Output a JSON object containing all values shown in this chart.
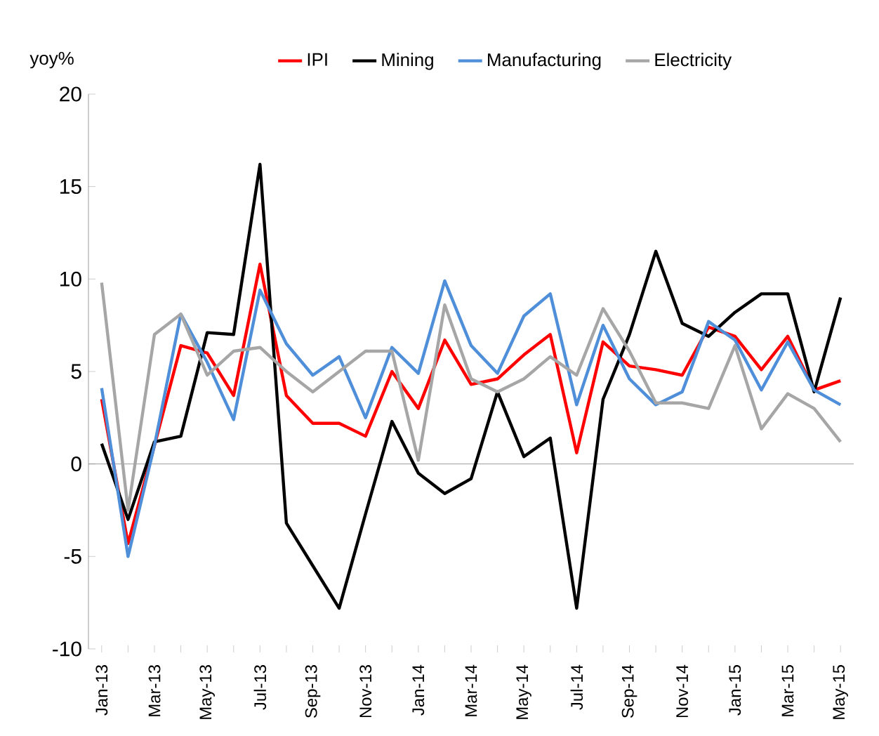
{
  "chart_data": {
    "type": "line",
    "ylabel": "yoy%",
    "categories": [
      "Jan-13",
      null,
      "Mar-13",
      null,
      "May-13",
      null,
      "Jul-13",
      null,
      "Sep-13",
      null,
      "Nov-13",
      null,
      "Jan-14",
      null,
      "Mar-14",
      null,
      "May-14",
      null,
      "Jul-14",
      null,
      "Sep-14",
      null,
      "Nov-14",
      null,
      "Jan-15",
      null,
      "Mar-15",
      null,
      "May-15"
    ],
    "series": [
      {
        "name": "IPI",
        "color": "#ff0000",
        "values": [
          3.5,
          -4.3,
          1.0,
          6.4,
          6.0,
          3.7,
          10.8,
          3.7,
          2.2,
          2.2,
          1.5,
          5.0,
          3.0,
          6.7,
          4.3,
          4.6,
          5.9,
          7.0,
          0.6,
          6.6,
          5.3,
          5.1,
          4.8,
          7.4,
          6.9,
          5.1,
          6.9,
          4.0,
          4.5
        ]
      },
      {
        "name": "Mining",
        "color": "#000000",
        "values": [
          1.1,
          -3.0,
          1.2,
          1.5,
          7.1,
          7.0,
          16.2,
          -3.2,
          -5.5,
          -7.8,
          -2.7,
          2.3,
          -0.5,
          -1.6,
          -0.8,
          3.9,
          0.4,
          1.4,
          -7.8,
          3.5,
          7.0,
          11.5,
          7.6,
          6.9,
          8.2,
          9.2,
          9.2,
          3.9,
          9.0
        ]
      },
      {
        "name": "Manufacturing",
        "color": "#4f8fd9",
        "values": [
          4.1,
          -5.0,
          1.0,
          8.1,
          5.5,
          2.4,
          9.4,
          6.5,
          4.8,
          5.8,
          2.5,
          6.3,
          4.9,
          9.9,
          6.4,
          4.9,
          8.0,
          9.2,
          3.2,
          7.5,
          4.6,
          3.2,
          3.9,
          7.7,
          6.7,
          4.0,
          6.6,
          4.0,
          3.2
        ]
      },
      {
        "name": "Electricity",
        "color": "#a6a6a6",
        "values": [
          9.8,
          -2.5,
          7.0,
          8.1,
          4.8,
          6.1,
          6.3,
          5.0,
          3.9,
          5.0,
          6.1,
          6.1,
          0.2,
          8.6,
          4.6,
          3.9,
          4.6,
          5.8,
          4.8,
          8.4,
          6.1,
          3.3,
          3.3,
          3.0,
          6.4,
          1.9,
          3.8,
          3.0,
          1.2
        ]
      }
    ],
    "ylim": [
      -10,
      20
    ],
    "yticks": [
      -10,
      -5,
      0,
      5,
      10,
      15,
      20
    ],
    "legend": "top",
    "marker": "none",
    "line_style": "solid"
  }
}
